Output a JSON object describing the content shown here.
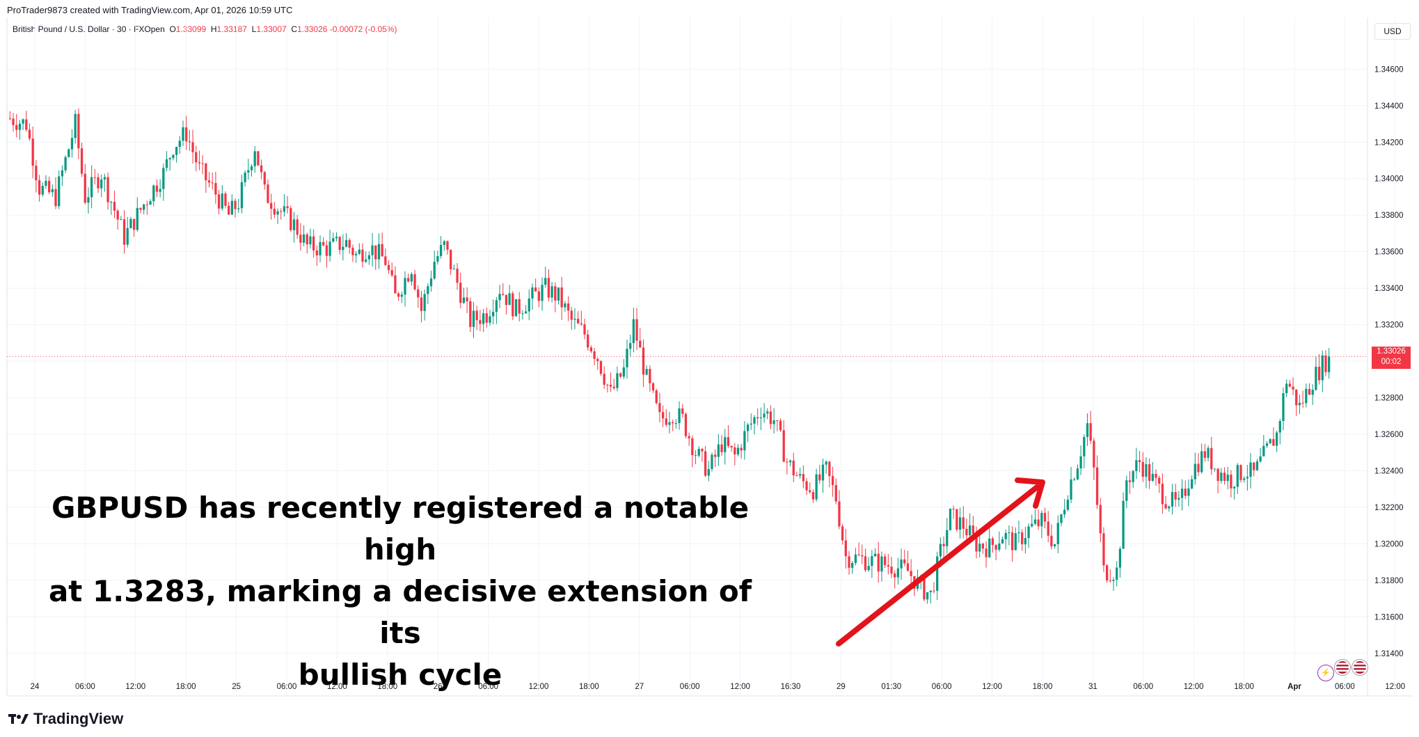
{
  "header": {
    "creator": "ProTrader9873 created with TradingView.com, Apr 01, 2026 10:59 UTC",
    "symbol": "British Pound / U.S. Dollar · 30 · FXOpen",
    "ohlc": {
      "o_label": "O",
      "o": "1.33099",
      "h_label": "H",
      "h": "1.33187",
      "l_label": "L",
      "l": "1.33007",
      "c_label": "C",
      "c": "1.33026",
      "change": "-0.00072 (-0.05%)"
    },
    "currency": "USD"
  },
  "price_tag": {
    "price": "1.33026",
    "countdown": "00:02"
  },
  "annotation": {
    "lines": [
      "GBPUSD has recently registered a notable high",
      "at 1.3283, marking a decisive extension of its",
      "bullish cycle"
    ]
  },
  "brand": "TradingView",
  "colors": {
    "up": "#089981",
    "down": "#f23645",
    "arrow": "#e3131b",
    "grid": "#f0f3fa"
  },
  "chart_data": {
    "type": "candlestick",
    "instrument": "GBPUSD",
    "timeframe": "30",
    "ylim": [
      1.313,
      1.3475
    ],
    "yticks": [
      "1.34600",
      "1.34400",
      "1.34200",
      "1.34000",
      "1.33800",
      "1.33600",
      "1.33400",
      "1.33200",
      "1.33000",
      "1.32800",
      "1.32600",
      "1.32400",
      "1.32200",
      "1.32000",
      "1.31800",
      "1.31600",
      "1.31400"
    ],
    "xticks": [
      "24",
      "06:00",
      "12:00",
      "18:00",
      "25",
      "06:00",
      "12:00",
      "18:00",
      "26",
      "06:00",
      "12:00",
      "18:00",
      "27",
      "06:00",
      "12:00",
      "16:30",
      "29",
      "01:30",
      "06:00",
      "12:00",
      "18:00",
      "31",
      "06:00",
      "12:00",
      "18:00",
      "Apr",
      "06:00",
      "12:00"
    ],
    "last_price": 1.33026,
    "anchors": [
      [
        0,
        1.3433
      ],
      [
        5,
        1.343
      ],
      [
        9,
        1.3395
      ],
      [
        14,
        1.339
      ],
      [
        20,
        1.343
      ],
      [
        23,
        1.339
      ],
      [
        28,
        1.3403
      ],
      [
        35,
        1.3368
      ],
      [
        39,
        1.338
      ],
      [
        43,
        1.3392
      ],
      [
        47,
        1.3403
      ],
      [
        50,
        1.3418
      ],
      [
        54,
        1.3425
      ],
      [
        58,
        1.3405
      ],
      [
        63,
        1.3392
      ],
      [
        67,
        1.338
      ],
      [
        70,
        1.3387
      ],
      [
        75,
        1.3418
      ],
      [
        78,
        1.3392
      ],
      [
        83,
        1.3382
      ],
      [
        87,
        1.3375
      ],
      [
        91,
        1.3363
      ],
      [
        97,
        1.3362
      ],
      [
        103,
        1.3365
      ],
      [
        106,
        1.3358
      ],
      [
        110,
        1.3363
      ],
      [
        115,
        1.3355
      ],
      [
        118,
        1.3335
      ],
      [
        123,
        1.3352
      ],
      [
        126,
        1.3328
      ],
      [
        130,
        1.3355
      ],
      [
        133,
        1.3363
      ],
      [
        137,
        1.3343
      ],
      [
        141,
        1.3322
      ],
      [
        146,
        1.3326
      ],
      [
        150,
        1.334
      ],
      [
        155,
        1.3328
      ],
      [
        160,
        1.3335
      ],
      [
        164,
        1.334
      ],
      [
        168,
        1.3335
      ],
      [
        172,
        1.3322
      ],
      [
        176,
        1.3315
      ],
      [
        180,
        1.3302
      ],
      [
        184,
        1.3282
      ],
      [
        188,
        1.3295
      ],
      [
        191,
        1.332
      ],
      [
        195,
        1.329
      ],
      [
        199,
        1.3268
      ],
      [
        203,
        1.3272
      ],
      [
        206,
        1.3268
      ],
      [
        210,
        1.325
      ],
      [
        214,
        1.324
      ],
      [
        218,
        1.3255
      ],
      [
        222,
        1.3248
      ],
      [
        226,
        1.3263
      ],
      [
        230,
        1.3274
      ],
      [
        234,
        1.3268
      ],
      [
        238,
        1.3245
      ],
      [
        242,
        1.3235
      ],
      [
        246,
        1.323
      ],
      [
        250,
        1.324
      ],
      [
        253,
        1.3225
      ],
      [
        256,
        1.3193
      ],
      [
        260,
        1.3192
      ],
      [
        265,
        1.319
      ],
      [
        270,
        1.3188
      ],
      [
        275,
        1.3185
      ],
      [
        279,
        1.3176
      ],
      [
        282,
        1.3172
      ],
      [
        285,
        1.3195
      ],
      [
        288,
        1.3215
      ],
      [
        292,
        1.321
      ],
      [
        296,
        1.32
      ],
      [
        300,
        1.3198
      ],
      [
        304,
        1.3205
      ],
      [
        308,
        1.32
      ],
      [
        312,
        1.3208
      ],
      [
        316,
        1.3212
      ],
      [
        320,
        1.32
      ],
      [
        324,
        1.323
      ],
      [
        327,
        1.3245
      ],
      [
        330,
        1.3265
      ],
      [
        332,
        1.324
      ],
      [
        335,
        1.3185
      ],
      [
        339,
        1.3185
      ],
      [
        342,
        1.3235
      ],
      [
        346,
        1.3245
      ],
      [
        350,
        1.3235
      ],
      [
        354,
        1.3225
      ],
      [
        358,
        1.322
      ],
      [
        362,
        1.324
      ],
      [
        366,
        1.325
      ],
      [
        370,
        1.324
      ],
      [
        374,
        1.3235
      ],
      [
        378,
        1.324
      ],
      [
        381,
        1.3238
      ],
      [
        384,
        1.3248
      ],
      [
        388,
        1.326
      ],
      [
        391,
        1.329
      ],
      [
        395,
        1.3275
      ],
      [
        399,
        1.329
      ],
      [
        402,
        1.3298
      ],
      [
        404,
        1.3302
      ]
    ]
  }
}
